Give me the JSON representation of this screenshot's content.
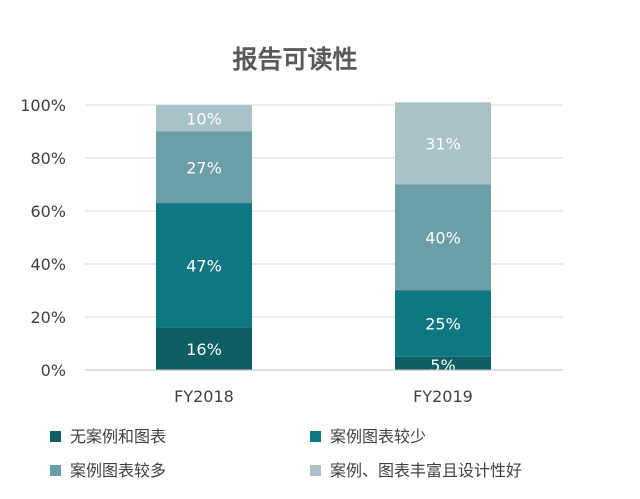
{
  "chart_data": {
    "type": "bar",
    "stacked": true,
    "title": "报告可读性",
    "xlabel": "",
    "ylabel": "",
    "categories": [
      "FY2018",
      "FY2019"
    ],
    "ylim": [
      0,
      100
    ],
    "yticks": [
      "0%",
      "20%",
      "40%",
      "60%",
      "80%",
      "100%"
    ],
    "ytick_values": [
      0,
      20,
      40,
      60,
      80,
      100
    ],
    "grid": true,
    "legend_position": "bottom",
    "series": [
      {
        "name": "无案例和图表",
        "values": [
          16,
          5
        ],
        "labels": [
          "16%",
          "5%"
        ],
        "color": "#0e5e63"
      },
      {
        "name": "案例图表较少",
        "values": [
          47,
          25
        ],
        "labels": [
          "47%",
          "25%"
        ],
        "color": "#0f7782"
      },
      {
        "name": "案例图表较多",
        "values": [
          27,
          40
        ],
        "labels": [
          "27%",
          "40%"
        ],
        "color": "#6b9ea7"
      },
      {
        "name": "案例、图表丰富且设计性好",
        "values": [
          10,
          31
        ],
        "labels": [
          "10%",
          "31%"
        ],
        "color": "#a9c2c8"
      }
    ]
  }
}
